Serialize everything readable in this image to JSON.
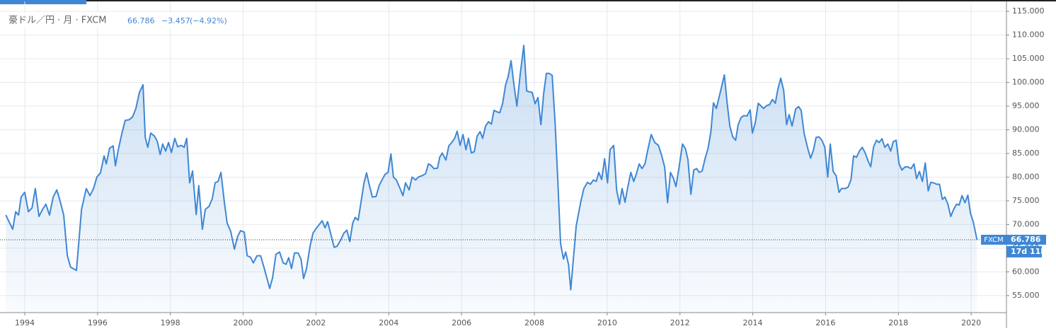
{
  "chart_data": {
    "type": "area",
    "title": "豪ドル／円 · 月 · FXCM",
    "last_value": 66.786,
    "change": "−3.457",
    "change_percent": "(−4.92%)",
    "countdown": "17d 11h",
    "xlim": [
      1993.32,
      2020.97
    ],
    "xticks": [
      1994,
      1996,
      1998,
      2000,
      2002,
      2004,
      2006,
      2008,
      2010,
      2012,
      2014,
      2016,
      2018,
      2020
    ],
    "ylim": [
      51.4,
      117.1
    ],
    "yticks": [
      {
        "value": 55,
        "label": "55.000"
      },
      {
        "value": 60,
        "label": "60.000"
      },
      {
        "value": 65,
        "label": "65.000"
      },
      {
        "value": 70,
        "label": "70.000"
      },
      {
        "value": 75,
        "label": "75.000"
      },
      {
        "value": 80,
        "label": "80.000"
      },
      {
        "value": 85,
        "label": "85.000"
      },
      {
        "value": 90,
        "label": "90.000"
      },
      {
        "value": 95,
        "label": "95.000"
      },
      {
        "value": 100,
        "label": "100.000"
      },
      {
        "value": 105,
        "label": "105.000"
      },
      {
        "value": 110,
        "label": "110.000"
      },
      {
        "value": 115,
        "label": "115.000"
      }
    ],
    "grid": true,
    "x": [
      1993.48,
      1993.67,
      1993.75,
      1993.83,
      1993.9,
      1994.0,
      1994.1,
      1994.2,
      1994.29,
      1994.39,
      1994.49,
      1994.58,
      1994.68,
      1994.78,
      1994.88,
      1994.97,
      1995.07,
      1995.17,
      1995.26,
      1995.42,
      1995.56,
      1995.69,
      1995.79,
      1995.89,
      1995.98,
      1996.08,
      1996.18,
      1996.24,
      1996.33,
      1996.43,
      1996.49,
      1996.57,
      1996.67,
      1996.76,
      1996.86,
      1996.96,
      1997.05,
      1997.15,
      1997.25,
      1997.31,
      1997.38,
      1997.46,
      1997.56,
      1997.64,
      1997.72,
      1997.79,
      1997.87,
      1997.95,
      1998.03,
      1998.12,
      1998.2,
      1998.3,
      1998.38,
      1998.45,
      1998.53,
      1998.61,
      1998.71,
      1998.78,
      1998.88,
      1998.96,
      1999.06,
      1999.15,
      1999.23,
      1999.31,
      1999.39,
      1999.49,
      1999.56,
      1999.66,
      1999.76,
      1999.85,
      1999.93,
      2000.03,
      2000.11,
      2000.2,
      2000.28,
      2000.38,
      2000.48,
      2000.57,
      2000.67,
      2000.73,
      2000.81,
      2000.9,
      2001.0,
      2001.1,
      2001.18,
      2001.25,
      2001.33,
      2001.41,
      2001.51,
      2001.59,
      2001.66,
      2001.74,
      2001.84,
      2001.92,
      2002.0,
      2002.09,
      2002.17,
      2002.25,
      2002.32,
      2002.42,
      2002.5,
      2002.58,
      2002.67,
      2002.77,
      2002.85,
      2002.93,
      2003.01,
      2003.08,
      2003.16,
      2003.26,
      2003.32,
      2003.39,
      2003.47,
      2003.55,
      2003.65,
      2003.74,
      2003.82,
      2003.9,
      2003.98,
      2004.06,
      2004.13,
      2004.21,
      2004.31,
      2004.39,
      2004.46,
      2004.56,
      2004.64,
      2004.74,
      2004.81,
      2004.91,
      2005.01,
      2005.09,
      2005.16,
      2005.24,
      2005.34,
      2005.4,
      2005.47,
      2005.57,
      2005.65,
      2005.73,
      2005.81,
      2005.88,
      2005.96,
      2006.04,
      2006.12,
      2006.19,
      2006.27,
      2006.35,
      2006.43,
      2006.51,
      2006.58,
      2006.66,
      2006.74,
      2006.82,
      2006.89,
      2006.97,
      2007.05,
      2007.13,
      2007.21,
      2007.28,
      2007.36,
      2007.44,
      2007.52,
      2007.61,
      2007.71,
      2007.79,
      2007.87,
      2007.94,
      2008.02,
      2008.1,
      2008.18,
      2008.26,
      2008.33,
      2008.41,
      2008.49,
      2008.57,
      2008.64,
      2008.72,
      2008.8,
      2008.86,
      2008.94,
      2009.0,
      2009.07,
      2009.15,
      2009.27,
      2009.36,
      2009.46,
      2009.54,
      2009.62,
      2009.7,
      2009.77,
      2009.85,
      2009.93,
      2010.01,
      2010.08,
      2010.18,
      2010.26,
      2010.34,
      2010.41,
      2010.49,
      2010.57,
      2010.65,
      2010.73,
      2010.8,
      2010.88,
      2010.96,
      2011.04,
      2011.11,
      2011.21,
      2011.31,
      2011.41,
      2011.5,
      2011.58,
      2011.66,
      2011.74,
      2011.82,
      2011.89,
      2011.97,
      2012.07,
      2012.15,
      2012.22,
      2012.3,
      2012.38,
      2012.46,
      2012.53,
      2012.61,
      2012.69,
      2012.77,
      2012.85,
      2012.92,
      2013.0,
      2013.12,
      2013.22,
      2013.29,
      2013.37,
      2013.45,
      2013.53,
      2013.6,
      2013.68,
      2013.76,
      2013.84,
      2013.93,
      2013.99,
      2014.07,
      2014.15,
      2014.23,
      2014.3,
      2014.38,
      2014.46,
      2014.54,
      2014.62,
      2014.69,
      2014.77,
      2014.85,
      2014.93,
      2015.0,
      2015.08,
      2015.18,
      2015.26,
      2015.33,
      2015.41,
      2015.51,
      2015.59,
      2015.67,
      2015.74,
      2015.82,
      2015.9,
      2015.98,
      2016.06,
      2016.13,
      2016.21,
      2016.29,
      2016.37,
      2016.44,
      2016.54,
      2016.62,
      2016.7,
      2016.77,
      2016.85,
      2016.93,
      2017.01,
      2017.09,
      2017.16,
      2017.24,
      2017.32,
      2017.4,
      2017.47,
      2017.55,
      2017.63,
      2017.71,
      2017.79,
      2017.86,
      2017.94,
      2018.02,
      2018.1,
      2018.17,
      2018.25,
      2018.35,
      2018.43,
      2018.5,
      2018.58,
      2018.66,
      2018.74,
      2018.82,
      2018.89,
      2018.97,
      2019.05,
      2019.13,
      2019.21,
      2019.28,
      2019.36,
      2019.44,
      2019.52,
      2019.6,
      2019.67,
      2019.75,
      2019.83,
      2019.91,
      2019.98,
      2020.06,
      2020.16
    ],
    "series": [
      {
        "name": "FXCM",
        "color": "#3f87d4",
        "values": [
          72.0,
          69.0,
          72.7,
          72.0,
          75.8,
          76.8,
          72.7,
          73.5,
          77.6,
          71.7,
          73.2,
          74.3,
          72.0,
          75.8,
          77.3,
          75.0,
          72.0,
          63.4,
          61.0,
          60.3,
          73.2,
          77.6,
          76.1,
          77.6,
          80.0,
          80.9,
          84.5,
          82.8,
          86.1,
          86.6,
          82.4,
          85.8,
          89.3,
          92.0,
          92.1,
          92.7,
          94.4,
          97.9,
          99.5,
          88.4,
          86.3,
          89.3,
          88.7,
          87.6,
          84.8,
          87.0,
          85.5,
          87.3,
          85.2,
          88.2,
          86.4,
          86.7,
          86.3,
          88.2,
          78.8,
          81.3,
          72.1,
          78.2,
          69.0,
          73.2,
          73.8,
          75.4,
          78.8,
          79.1,
          81.0,
          74.3,
          70.3,
          68.5,
          64.8,
          67.5,
          68.7,
          68.4,
          63.4,
          63.1,
          61.9,
          63.4,
          63.4,
          61.0,
          58.2,
          56.5,
          58.8,
          63.7,
          64.2,
          61.9,
          61.6,
          63.0,
          60.7,
          64.0,
          64.0,
          62.7,
          58.6,
          60.7,
          65.5,
          68.2,
          69.1,
          70.0,
          70.8,
          69.3,
          70.6,
          67.6,
          65.2,
          65.4,
          66.6,
          68.2,
          68.8,
          66.4,
          70.3,
          71.5,
          70.9,
          75.8,
          78.8,
          80.9,
          78.2,
          75.8,
          75.9,
          78.3,
          79.5,
          80.6,
          81.0,
          84.9,
          80.0,
          79.4,
          77.6,
          76.1,
          78.8,
          77.3,
          80.0,
          79.4,
          80.0,
          80.3,
          80.7,
          82.8,
          82.5,
          81.8,
          81.9,
          84.2,
          85.1,
          83.6,
          86.6,
          87.3,
          88.2,
          89.7,
          86.7,
          89.0,
          85.8,
          88.2,
          85.1,
          85.4,
          88.7,
          89.6,
          88.2,
          90.8,
          91.7,
          91.2,
          94.1,
          93.8,
          93.6,
          95.6,
          99.5,
          101.2,
          104.6,
          99.5,
          95.0,
          101.6,
          107.8,
          98.2,
          98.0,
          97.9,
          95.5,
          96.8,
          91.1,
          97.9,
          101.9,
          101.9,
          101.5,
          91.5,
          80.0,
          66.0,
          62.7,
          64.2,
          61.5,
          56.2,
          62.5,
          69.7,
          74.6,
          77.6,
          78.9,
          78.5,
          79.4,
          79.1,
          81.0,
          79.5,
          83.9,
          78.8,
          85.8,
          86.7,
          77.3,
          74.3,
          77.6,
          74.7,
          78.0,
          81.0,
          79.1,
          80.6,
          82.8,
          81.8,
          82.8,
          85.5,
          89.0,
          87.3,
          86.7,
          84.5,
          82.1,
          74.6,
          81.0,
          79.8,
          78.0,
          81.8,
          87.0,
          86.0,
          83.7,
          76.4,
          81.5,
          81.8,
          81.0,
          81.3,
          83.9,
          86.0,
          89.6,
          95.7,
          94.5,
          98.3,
          101.6,
          96.1,
          90.8,
          88.5,
          87.8,
          91.1,
          92.6,
          93.0,
          92.9,
          94.2,
          89.3,
          91.5,
          95.6,
          95.0,
          94.5,
          95.1,
          95.3,
          96.4,
          95.6,
          98.6,
          100.9,
          98.3,
          91.1,
          93.2,
          90.8,
          94.4,
          94.9,
          94.1,
          89.3,
          86.1,
          84.0,
          85.8,
          88.4,
          88.5,
          87.8,
          86.3,
          80.0,
          87.0,
          81.2,
          80.3,
          76.8,
          77.6,
          77.6,
          77.9,
          79.5,
          84.5,
          84.2,
          85.5,
          86.3,
          85.1,
          83.6,
          82.2,
          86.4,
          87.8,
          87.3,
          88.1,
          86.3,
          87.0,
          85.5,
          87.5,
          87.8,
          82.8,
          81.5,
          82.1,
          82.2,
          81.8,
          82.8,
          79.7,
          81.2,
          79.1,
          83.0,
          77.1,
          78.9,
          78.8,
          78.5,
          78.5,
          75.3,
          75.8,
          74.3,
          71.7,
          73.2,
          74.3,
          74.1,
          76.1,
          74.6,
          76.2,
          72.4,
          70.5,
          66.786
        ]
      }
    ]
  }
}
